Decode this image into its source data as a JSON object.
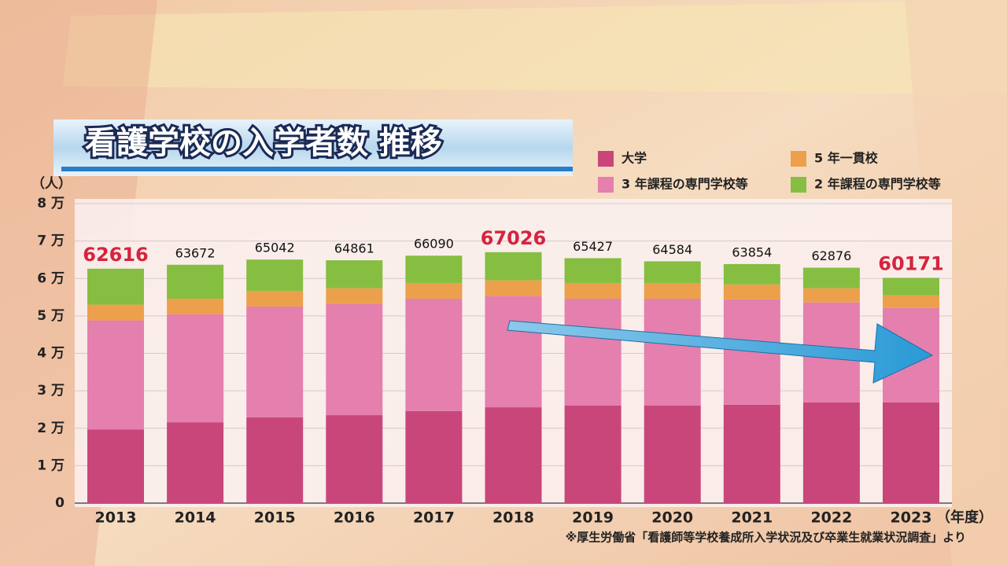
{
  "chart_data": {
    "type": "stacked-bar",
    "title": "看護学校の入学者数 推移",
    "y_unit": "（人）",
    "x_unit": "（年度）",
    "source": "※厚生労働省「看護師等学校養成所入学状況及び卒業生就業状況調査」より",
    "categories": [
      "2013",
      "2014",
      "2015",
      "2016",
      "2017",
      "2018",
      "2019",
      "2020",
      "2021",
      "2022",
      "2023"
    ],
    "series": [
      {
        "name": "大学",
        "color": "#c9467b",
        "values": [
          19700,
          21600,
          22900,
          23500,
          24600,
          25600,
          26100,
          26100,
          26300,
          26900,
          26900
        ]
      },
      {
        "name": "3 年課程の専門学校等",
        "color": "#e47fae",
        "values": [
          29100,
          28800,
          29600,
          29700,
          30000,
          29700,
          28500,
          28500,
          28100,
          26700,
          25200
        ]
      },
      {
        "name": "5 年一貫校",
        "color": "#eca04c",
        "values": [
          4200,
          4200,
          4200,
          4200,
          4200,
          4200,
          4200,
          4200,
          4000,
          3800,
          3400
        ]
      },
      {
        "name": "2 年課程の専門学校等",
        "color": "#86be41",
        "values": [
          9616,
          9072,
          8342,
          7461,
          7290,
          7526,
          6627,
          5784,
          5454,
          5476,
          4671
        ]
      }
    ],
    "totals": [
      62616,
      63672,
      65042,
      64861,
      66090,
      67026,
      65427,
      64584,
      63854,
      62876,
      60171
    ],
    "total_colors": [
      "#d5243f",
      "#111111",
      "#111111",
      "#111111",
      "#111111",
      "#d5243f",
      "#111111",
      "#111111",
      "#111111",
      "#111111",
      "#d5243f"
    ],
    "ylim": [
      0,
      80000
    ],
    "yticks": [
      0,
      {
        "value": 10000,
        "label": "1 万"
      },
      {
        "value": 20000,
        "label": "2 万"
      },
      {
        "value": 30000,
        "label": "3 万"
      },
      {
        "value": 40000,
        "label": "4 万"
      },
      {
        "value": 50000,
        "label": "5 万"
      },
      {
        "value": 60000,
        "label": "6 万"
      },
      {
        "value": 70000,
        "label": "7 万"
      },
      {
        "value": 80000,
        "label": "8 万"
      }
    ],
    "grid": true
  }
}
